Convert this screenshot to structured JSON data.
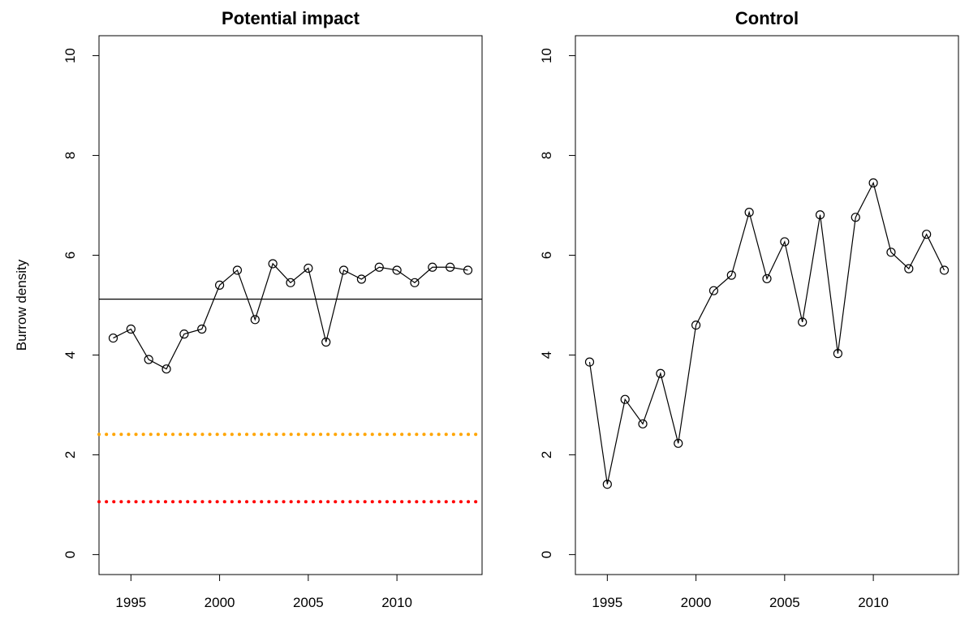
{
  "chart_data": [
    {
      "type": "line",
      "title": "Potential impact",
      "ylabel": "Burrow density",
      "x": [
        1994,
        1995,
        1996,
        1997,
        1998,
        1999,
        2000,
        2001,
        2002,
        2003,
        2004,
        2005,
        2006,
        2007,
        2008,
        2009,
        2010,
        2011,
        2012,
        2013,
        2014
      ],
      "series": [
        {
          "color": "#000000",
          "values": [
            4.34,
            4.52,
            3.91,
            3.72,
            4.42,
            4.52,
            5.4,
            5.7,
            4.71,
            5.83,
            5.45,
            5.74,
            4.26,
            5.7,
            5.52,
            5.76,
            5.7,
            5.45,
            5.76,
            5.76,
            5.7
          ]
        }
      ],
      "hlines": [
        {
          "value": 5.12,
          "color": "#000000",
          "style": "solid"
        },
        {
          "value": 2.41,
          "color": "#ffa500",
          "style": "dotted"
        },
        {
          "value": 1.06,
          "color": "#ff0000",
          "style": "dotted"
        }
      ],
      "xlim": [
        1993.2,
        2014.8
      ],
      "ylim": [
        -0.4,
        10.4
      ],
      "xticks": [
        1995,
        2000,
        2005,
        2010
      ],
      "yticks": [
        0,
        2,
        4,
        6,
        8,
        10
      ]
    },
    {
      "type": "line",
      "title": "Control",
      "x": [
        1994,
        1995,
        1996,
        1997,
        1998,
        1999,
        2000,
        2001,
        2002,
        2003,
        2004,
        2005,
        2006,
        2007,
        2008,
        2009,
        2010,
        2011,
        2012,
        2013,
        2014
      ],
      "series": [
        {
          "color": "#000000",
          "values": [
            3.86,
            1.41,
            3.11,
            2.62,
            3.63,
            2.23,
            4.6,
            5.29,
            5.6,
            6.86,
            5.53,
            6.27,
            4.66,
            6.81,
            4.03,
            6.76,
            7.45,
            6.06,
            5.73,
            6.42,
            5.7
          ]
        }
      ],
      "xlim": [
        1993.2,
        2014.8
      ],
      "ylim": [
        -0.4,
        10.4
      ],
      "xticks": [
        1995,
        2000,
        2005,
        2010
      ],
      "yticks": [
        0,
        2,
        4,
        6,
        8,
        10
      ]
    }
  ]
}
